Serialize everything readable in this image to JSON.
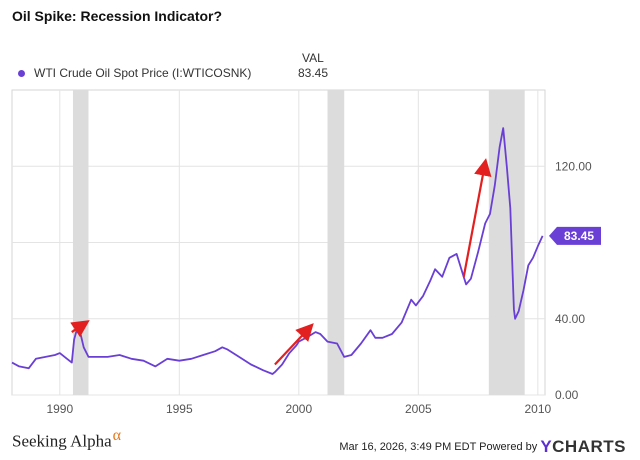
{
  "title": "Oil Spike: Recession Indicator?",
  "legend": {
    "header": "VAL",
    "series_name": "WTI Crude Oil Spot Price (I:WTICOSNK)",
    "value": "83.45",
    "color": "#6a3fd6"
  },
  "footer": {
    "brand": "Seeking Alpha",
    "brand_symbol": "α",
    "timestamp": "Mar 16, 2026, 3:49 PM EDT Powered by",
    "ycharts_logo": "YCHARTS"
  },
  "chart_data": {
    "type": "line",
    "title": "Oil Spike: Recession Indicator?",
    "series": [
      {
        "name": "WTI Crude Oil Spot Price (I:WTICOSNK)",
        "color": "#6a3fd6",
        "x": [
          1988.0,
          1988.3,
          1988.7,
          1989.0,
          1989.4,
          1989.8,
          1990.0,
          1990.3,
          1990.5,
          1990.6,
          1990.75,
          1990.85,
          1991.0,
          1991.2,
          1991.5,
          1992.0,
          1992.5,
          1993.0,
          1993.5,
          1994.0,
          1994.5,
          1995.0,
          1995.5,
          1996.0,
          1996.5,
          1996.8,
          1997.0,
          1997.5,
          1998.0,
          1998.5,
          1998.9,
          1999.0,
          1999.3,
          1999.6,
          1999.9,
          2000.0,
          2000.3,
          2000.7,
          2000.9,
          2001.2,
          2001.6,
          2001.9,
          2002.2,
          2002.6,
          2003.0,
          2003.2,
          2003.5,
          2003.9,
          2004.3,
          2004.7,
          2004.9,
          2005.2,
          2005.5,
          2005.7,
          2006.0,
          2006.3,
          2006.6,
          2006.9,
          2007.0,
          2007.2,
          2007.5,
          2007.8,
          2008.0,
          2008.2,
          2008.4,
          2008.55,
          2008.7,
          2008.85,
          2009.0,
          2009.05,
          2009.2,
          2009.4,
          2009.6,
          2009.8,
          2010.0,
          2010.2
        ],
        "values": [
          17,
          15,
          14,
          19,
          20,
          21,
          22,
          19,
          17,
          29,
          36,
          33,
          25,
          20,
          20,
          20,
          21,
          19,
          18,
          15,
          19,
          18,
          19,
          21,
          23,
          25,
          24,
          20,
          16,
          13,
          11,
          12,
          16,
          22,
          26,
          28,
          30,
          33,
          32,
          28,
          27,
          20,
          21,
          27,
          34,
          30,
          30,
          32,
          38,
          50,
          47,
          52,
          60,
          66,
          62,
          72,
          74,
          62,
          58,
          61,
          75,
          90,
          95,
          110,
          130,
          140,
          120,
          98,
          45,
          40,
          44,
          55,
          68,
          72,
          78,
          83.45
        ],
        "label_value": "83.45"
      }
    ],
    "x_ticks": [
      "1990",
      "1995",
      "2000",
      "2005",
      "2010"
    ],
    "y_ticks": [
      "0.00",
      "40.00",
      "120.00"
    ],
    "xlim": [
      1988,
      2010.3
    ],
    "ylim": [
      0,
      160
    ],
    "recessions": [
      [
        1990.55,
        1991.2
      ],
      [
        2001.2,
        2001.9
      ],
      [
        2007.95,
        2009.45
      ]
    ],
    "annotations": [
      {
        "type": "arrow",
        "from": [
          1990.5,
          33
        ],
        "to": [
          1991.1,
          38
        ]
      },
      {
        "type": "arrow",
        "from": [
          1999.0,
          16
        ],
        "to": [
          2000.5,
          36
        ]
      },
      {
        "type": "arrow",
        "from": [
          2006.9,
          62
        ],
        "to": [
          2007.8,
          122
        ]
      }
    ],
    "grid": true
  },
  "colors": {
    "line": "#6a3fd6",
    "recession": "#dcdcdc",
    "arrow": "#e32020",
    "grid": "#e4e4e4"
  }
}
